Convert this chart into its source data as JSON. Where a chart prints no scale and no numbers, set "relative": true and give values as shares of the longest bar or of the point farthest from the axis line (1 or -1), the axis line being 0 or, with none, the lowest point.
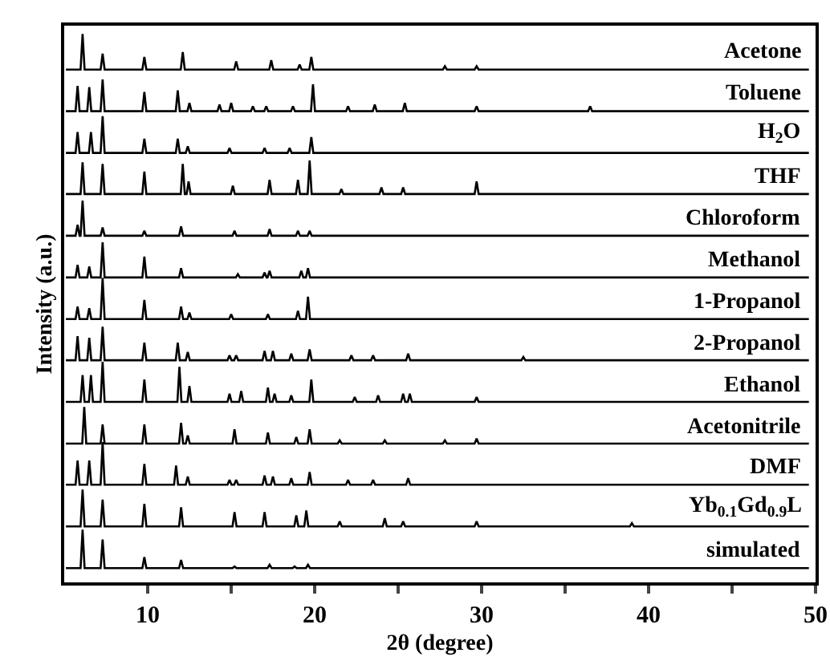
{
  "chart_data": {
    "type": "line",
    "relative": true,
    "xlabel": "2θ (degree)",
    "ylabel": "Intensity (a.u.)",
    "legend": false,
    "grid": false,
    "xlim": [
      5,
      50
    ],
    "xticks": [
      10,
      {
        "value": 15,
        "label": null
      },
      20,
      {
        "value": 25,
        "label": null
      },
      30,
      {
        "value": 35,
        "label": null
      },
      40,
      {
        "value": 45,
        "label": null
      },
      50
    ],
    "series": [
      {
        "name": "Acetone",
        "color": "#000000",
        "x": [
          5.1,
          5.98,
          6.1,
          6.22,
          7.18,
          7.3,
          7.42,
          9.68,
          9.8,
          9.92,
          11.98,
          12.1,
          12.22,
          15.18,
          15.3,
          15.42,
          17.28,
          17.4,
          17.52,
          18.98,
          19.1,
          19.22,
          19.68,
          19.8,
          19.92,
          27.68,
          27.8,
          27.92,
          29.58,
          29.7,
          29.82,
          49.6
        ],
        "values": [
          0.935,
          0.935,
          1,
          0.935,
          0.935,
          0.964,
          0.935,
          0.935,
          0.958,
          0.935,
          0.935,
          0.967,
          0.935,
          0.935,
          0.95,
          0.935,
          0.935,
          0.952,
          0.935,
          0.935,
          0.944,
          0.935,
          0.935,
          0.958,
          0.935,
          0.935,
          0.941,
          0.935,
          0.935,
          0.941,
          0.935,
          0.935
        ]
      },
      {
        "name": "Toluene",
        "color": "#000000",
        "x": [
          5.1,
          5.68,
          5.8,
          5.92,
          6.38,
          6.5,
          6.62,
          7.18,
          7.3,
          7.42,
          9.68,
          9.8,
          9.92,
          11.68,
          11.8,
          11.92,
          12.38,
          12.5,
          12.62,
          14.18,
          14.3,
          14.42,
          14.88,
          15.0,
          15.12,
          16.18,
          16.3,
          16.42,
          16.98,
          17.1,
          17.22,
          18.58,
          18.7,
          18.82,
          19.78,
          19.9,
          20.02,
          21.88,
          22.0,
          22.12,
          23.48,
          23.6,
          23.72,
          25.28,
          25.4,
          25.52,
          29.58,
          29.7,
          29.82,
          36.38,
          36.5,
          36.62,
          49.6
        ],
        "values": [
          0.859,
          0.859,
          0.905,
          0.859,
          0.859,
          0.903,
          0.859,
          0.859,
          0.917,
          0.859,
          0.859,
          0.894,
          0.859,
          0.859,
          0.897,
          0.859,
          0.859,
          0.874,
          0.859,
          0.859,
          0.871,
          0.859,
          0.859,
          0.874,
          0.859,
          0.859,
          0.868,
          0.859,
          0.859,
          0.868,
          0.859,
          0.859,
          0.868,
          0.859,
          0.859,
          0.908,
          0.859,
          0.859,
          0.868,
          0.859,
          0.859,
          0.871,
          0.859,
          0.859,
          0.874,
          0.859,
          0.859,
          0.868,
          0.859,
          0.859,
          0.868,
          0.859,
          0.859
        ]
      },
      {
        "name": "H$_{2}$O",
        "color": "#000000",
        "x": [
          5.1,
          5.68,
          5.8,
          5.92,
          6.48,
          6.6,
          6.72,
          7.18,
          7.3,
          7.42,
          9.68,
          9.8,
          9.92,
          11.68,
          11.8,
          11.92,
          12.28,
          12.4,
          12.52,
          14.78,
          14.9,
          15.02,
          16.88,
          17.0,
          17.12,
          18.38,
          18.5,
          18.62,
          19.68,
          19.8,
          19.92,
          49.6
        ],
        "values": [
          0.783,
          0.783,
          0.821,
          0.783,
          0.783,
          0.821,
          0.783,
          0.783,
          0.85,
          0.783,
          0.783,
          0.809,
          0.783,
          0.783,
          0.809,
          0.783,
          0.783,
          0.795,
          0.783,
          0.783,
          0.792,
          0.783,
          0.783,
          0.792,
          0.783,
          0.783,
          0.792,
          0.783,
          0.783,
          0.812,
          0.783,
          0.783
        ]
      },
      {
        "name": "THF",
        "color": "#000000",
        "x": [
          5.1,
          5.98,
          6.1,
          6.22,
          7.18,
          7.3,
          7.42,
          9.68,
          9.8,
          9.92,
          11.98,
          12.1,
          12.22,
          12.33,
          12.45,
          12.57,
          14.98,
          15.1,
          15.22,
          17.18,
          17.3,
          17.42,
          18.88,
          19.0,
          19.12,
          19.58,
          19.7,
          19.82,
          21.48,
          21.6,
          21.72,
          23.88,
          24.0,
          24.12,
          25.18,
          25.3,
          25.42,
          29.58,
          29.7,
          29.82,
          49.6
        ],
        "values": [
          0.708,
          0.708,
          0.766,
          0.708,
          0.708,
          0.763,
          0.708,
          0.708,
          0.749,
          0.708,
          0.708,
          0.763,
          0.708,
          0.708,
          0.731,
          0.708,
          0.708,
          0.723,
          0.708,
          0.708,
          0.734,
          0.708,
          0.708,
          0.734,
          0.708,
          0.708,
          0.769,
          0.708,
          0.708,
          0.717,
          0.708,
          0.708,
          0.72,
          0.708,
          0.708,
          0.72,
          0.708,
          0.708,
          0.731,
          0.708,
          0.708
        ]
      },
      {
        "name": "Chloroform",
        "color": "#000000",
        "x": [
          5.1,
          5.68,
          5.8,
          5.92,
          5.98,
          6.1,
          6.22,
          7.18,
          7.3,
          7.42,
          9.68,
          9.8,
          9.92,
          11.88,
          12.0,
          12.12,
          15.08,
          15.2,
          15.32,
          17.18,
          17.3,
          17.42,
          18.88,
          19.0,
          19.12,
          19.58,
          19.7,
          19.82,
          49.6
        ],
        "values": [
          0.632,
          0.632,
          0.652,
          0.632,
          0.632,
          0.696,
          0.632,
          0.632,
          0.647,
          0.632,
          0.632,
          0.641,
          0.632,
          0.632,
          0.649,
          0.632,
          0.632,
          0.641,
          0.632,
          0.632,
          0.644,
          0.632,
          0.632,
          0.641,
          0.632,
          0.632,
          0.641,
          0.632,
          0.632
        ]
      },
      {
        "name": "Methanol",
        "color": "#000000",
        "x": [
          5.1,
          5.68,
          5.8,
          5.92,
          6.38,
          6.5,
          6.62,
          7.18,
          7.3,
          7.42,
          9.68,
          9.8,
          9.92,
          11.88,
          12.0,
          12.12,
          15.28,
          15.4,
          15.52,
          16.88,
          17.0,
          17.12,
          17.18,
          17.3,
          17.42,
          19.08,
          19.2,
          19.32,
          19.48,
          19.6,
          19.72,
          49.6
        ],
        "values": [
          0.556,
          0.556,
          0.579,
          0.556,
          0.556,
          0.576,
          0.556,
          0.556,
          0.62,
          0.556,
          0.556,
          0.594,
          0.556,
          0.556,
          0.573,
          0.556,
          0.556,
          0.562,
          0.556,
          0.556,
          0.565,
          0.556,
          0.556,
          0.568,
          0.556,
          0.556,
          0.568,
          0.556,
          0.556,
          0.573,
          0.556,
          0.556
        ]
      },
      {
        "name": "1-Propanol",
        "color": "#000000",
        "x": [
          5.1,
          5.68,
          5.8,
          5.92,
          6.38,
          6.5,
          6.62,
          7.18,
          7.3,
          7.42,
          9.68,
          9.8,
          9.92,
          11.88,
          12.0,
          12.12,
          12.38,
          12.5,
          12.62,
          14.88,
          15.0,
          15.12,
          17.08,
          17.2,
          17.32,
          18.88,
          19.0,
          19.12,
          19.48,
          19.6,
          19.72,
          49.6
        ],
        "values": [
          0.48,
          0.48,
          0.503,
          0.48,
          0.48,
          0.5,
          0.48,
          0.48,
          0.555,
          0.48,
          0.48,
          0.515,
          0.48,
          0.48,
          0.503,
          0.48,
          0.48,
          0.492,
          0.48,
          0.48,
          0.489,
          0.48,
          0.48,
          0.489,
          0.48,
          0.48,
          0.495,
          0.48,
          0.48,
          0.521,
          0.48,
          0.48
        ]
      },
      {
        "name": "2-Propanol",
        "color": "#000000",
        "x": [
          5.1,
          5.68,
          5.8,
          5.92,
          6.38,
          6.5,
          6.62,
          7.18,
          7.3,
          7.42,
          9.68,
          9.8,
          9.92,
          11.68,
          11.8,
          11.92,
          12.28,
          12.4,
          12.52,
          14.78,
          14.9,
          15.02,
          15.18,
          15.3,
          15.42,
          16.88,
          17.0,
          17.12,
          17.38,
          17.5,
          17.62,
          18.48,
          18.6,
          18.72,
          19.58,
          19.7,
          19.82,
          22.08,
          22.2,
          22.32,
          23.38,
          23.5,
          23.62,
          25.48,
          25.6,
          25.72,
          32.38,
          32.5,
          32.62,
          49.6
        ],
        "values": [
          0.405,
          0.405,
          0.449,
          0.405,
          0.405,
          0.446,
          0.405,
          0.405,
          0.466,
          0.405,
          0.405,
          0.437,
          0.405,
          0.405,
          0.437,
          0.405,
          0.405,
          0.42,
          0.405,
          0.405,
          0.414,
          0.405,
          0.405,
          0.414,
          0.405,
          0.405,
          0.422,
          0.405,
          0.405,
          0.422,
          0.405,
          0.405,
          0.417,
          0.405,
          0.405,
          0.425,
          0.405,
          0.405,
          0.414,
          0.405,
          0.405,
          0.414,
          0.405,
          0.405,
          0.417,
          0.405,
          0.405,
          0.411,
          0.405,
          0.405
        ]
      },
      {
        "name": "Ethanol",
        "color": "#000000",
        "x": [
          5.1,
          5.98,
          6.1,
          6.22,
          6.48,
          6.6,
          6.72,
          7.18,
          7.3,
          7.42,
          9.68,
          9.8,
          9.92,
          11.78,
          11.9,
          12.02,
          12.38,
          12.5,
          12.62,
          14.78,
          14.9,
          15.02,
          15.48,
          15.6,
          15.72,
          17.08,
          17.2,
          17.32,
          17.48,
          17.6,
          17.72,
          18.48,
          18.6,
          18.72,
          19.68,
          19.8,
          19.92,
          22.28,
          22.4,
          22.52,
          23.68,
          23.8,
          23.92,
          25.18,
          25.3,
          25.42,
          25.58,
          25.7,
          25.82,
          29.58,
          29.7,
          29.82,
          49.6
        ],
        "values": [
          0.329,
          0.329,
          0.378,
          0.329,
          0.329,
          0.378,
          0.329,
          0.329,
          0.402,
          0.329,
          0.329,
          0.37,
          0.329,
          0.329,
          0.393,
          0.329,
          0.329,
          0.358,
          0.329,
          0.329,
          0.344,
          0.329,
          0.329,
          0.349,
          0.329,
          0.329,
          0.355,
          0.329,
          0.329,
          0.344,
          0.329,
          0.329,
          0.341,
          0.329,
          0.329,
          0.37,
          0.329,
          0.329,
          0.338,
          0.329,
          0.329,
          0.341,
          0.329,
          0.329,
          0.344,
          0.329,
          0.329,
          0.344,
          0.329,
          0.329,
          0.338,
          0.329,
          0.329
        ]
      },
      {
        "name": "Acetonitrile",
        "color": "#000000",
        "x": [
          5.1,
          6.08,
          6.2,
          6.32,
          7.18,
          7.3,
          7.42,
          9.68,
          9.8,
          9.92,
          11.88,
          12.0,
          12.12,
          12.28,
          12.4,
          12.52,
          15.08,
          15.2,
          15.32,
          17.08,
          17.2,
          17.32,
          18.78,
          18.9,
          19.02,
          19.58,
          19.7,
          19.82,
          21.38,
          21.5,
          21.62,
          24.08,
          24.2,
          24.32,
          27.68,
          27.8,
          27.92,
          29.58,
          29.7,
          29.82,
          49.6
        ],
        "values": [
          0.253,
          0.253,
          0.32,
          0.253,
          0.253,
          0.288,
          0.253,
          0.253,
          0.288,
          0.253,
          0.253,
          0.291,
          0.253,
          0.253,
          0.268,
          0.253,
          0.253,
          0.279,
          0.253,
          0.253,
          0.273,
          0.253,
          0.253,
          0.265,
          0.253,
          0.253,
          0.279,
          0.253,
          0.253,
          0.259,
          0.253,
          0.253,
          0.259,
          0.253,
          0.253,
          0.259,
          0.253,
          0.253,
          0.262,
          0.253,
          0.253
        ]
      },
      {
        "name": "DMF",
        "color": "#000000",
        "x": [
          5.1,
          5.68,
          5.8,
          5.92,
          6.38,
          6.5,
          6.62,
          7.18,
          7.3,
          7.42,
          9.68,
          9.8,
          9.92,
          11.58,
          11.7,
          11.82,
          12.28,
          12.4,
          12.52,
          14.78,
          14.9,
          15.02,
          15.18,
          15.3,
          15.42,
          16.88,
          17.0,
          17.12,
          17.38,
          17.5,
          17.62,
          18.48,
          18.6,
          18.72,
          19.58,
          19.7,
          19.82,
          21.88,
          22.0,
          22.12,
          23.38,
          23.5,
          23.62,
          25.48,
          25.6,
          25.72,
          49.6
        ],
        "values": [
          0.178,
          0.178,
          0.222,
          0.178,
          0.178,
          0.222,
          0.178,
          0.178,
          0.256,
          0.178,
          0.178,
          0.216,
          0.178,
          0.178,
          0.213,
          0.178,
          0.178,
          0.193,
          0.178,
          0.178,
          0.187,
          0.178,
          0.178,
          0.187,
          0.178,
          0.178,
          0.195,
          0.178,
          0.178,
          0.193,
          0.178,
          0.178,
          0.19,
          0.178,
          0.178,
          0.201,
          0.178,
          0.178,
          0.187,
          0.178,
          0.178,
          0.187,
          0.178,
          0.178,
          0.19,
          0.178,
          0.178
        ]
      },
      {
        "name": "Yb$_{0.1}$Gd$_{0.9}$L",
        "color": "#000000",
        "x": [
          5.1,
          5.98,
          6.1,
          6.22,
          7.18,
          7.3,
          7.42,
          9.68,
          9.8,
          9.92,
          11.88,
          12.0,
          12.12,
          15.08,
          15.2,
          15.32,
          16.88,
          17.0,
          17.12,
          18.78,
          18.9,
          19.02,
          19.38,
          19.5,
          19.62,
          21.38,
          21.5,
          21.62,
          24.08,
          24.2,
          24.32,
          25.18,
          25.3,
          25.42,
          29.58,
          29.7,
          29.82,
          38.88,
          39.0,
          39.12,
          49.6
        ],
        "values": [
          0.102,
          0.102,
          0.169,
          0.102,
          0.102,
          0.151,
          0.102,
          0.102,
          0.143,
          0.102,
          0.102,
          0.137,
          0.102,
          0.102,
          0.128,
          0.102,
          0.102,
          0.128,
          0.102,
          0.102,
          0.122,
          0.102,
          0.102,
          0.131,
          0.102,
          0.102,
          0.111,
          0.102,
          0.102,
          0.117,
          0.102,
          0.102,
          0.111,
          0.102,
          0.102,
          0.111,
          0.102,
          0.102,
          0.108,
          0.102,
          0.102
        ]
      },
      {
        "name": "simulated",
        "color": "#000000",
        "x": [
          5.1,
          5.98,
          6.1,
          6.22,
          7.18,
          7.3,
          7.42,
          9.68,
          9.8,
          9.92,
          11.88,
          12.0,
          12.12,
          15.08,
          15.2,
          15.32,
          17.18,
          17.3,
          17.42,
          18.68,
          18.8,
          18.92,
          19.48,
          19.6,
          19.72,
          49.6
        ],
        "values": [
          0.026,
          0.026,
          0.096,
          0.026,
          0.026,
          0.078,
          0.026,
          0.026,
          0.046,
          0.026,
          0.026,
          0.041,
          0.026,
          0.026,
          0.029,
          0.026,
          0.026,
          0.032,
          0.026,
          0.026,
          0.029,
          0.026,
          0.026,
          0.032,
          0.026,
          0.026
        ]
      }
    ]
  }
}
